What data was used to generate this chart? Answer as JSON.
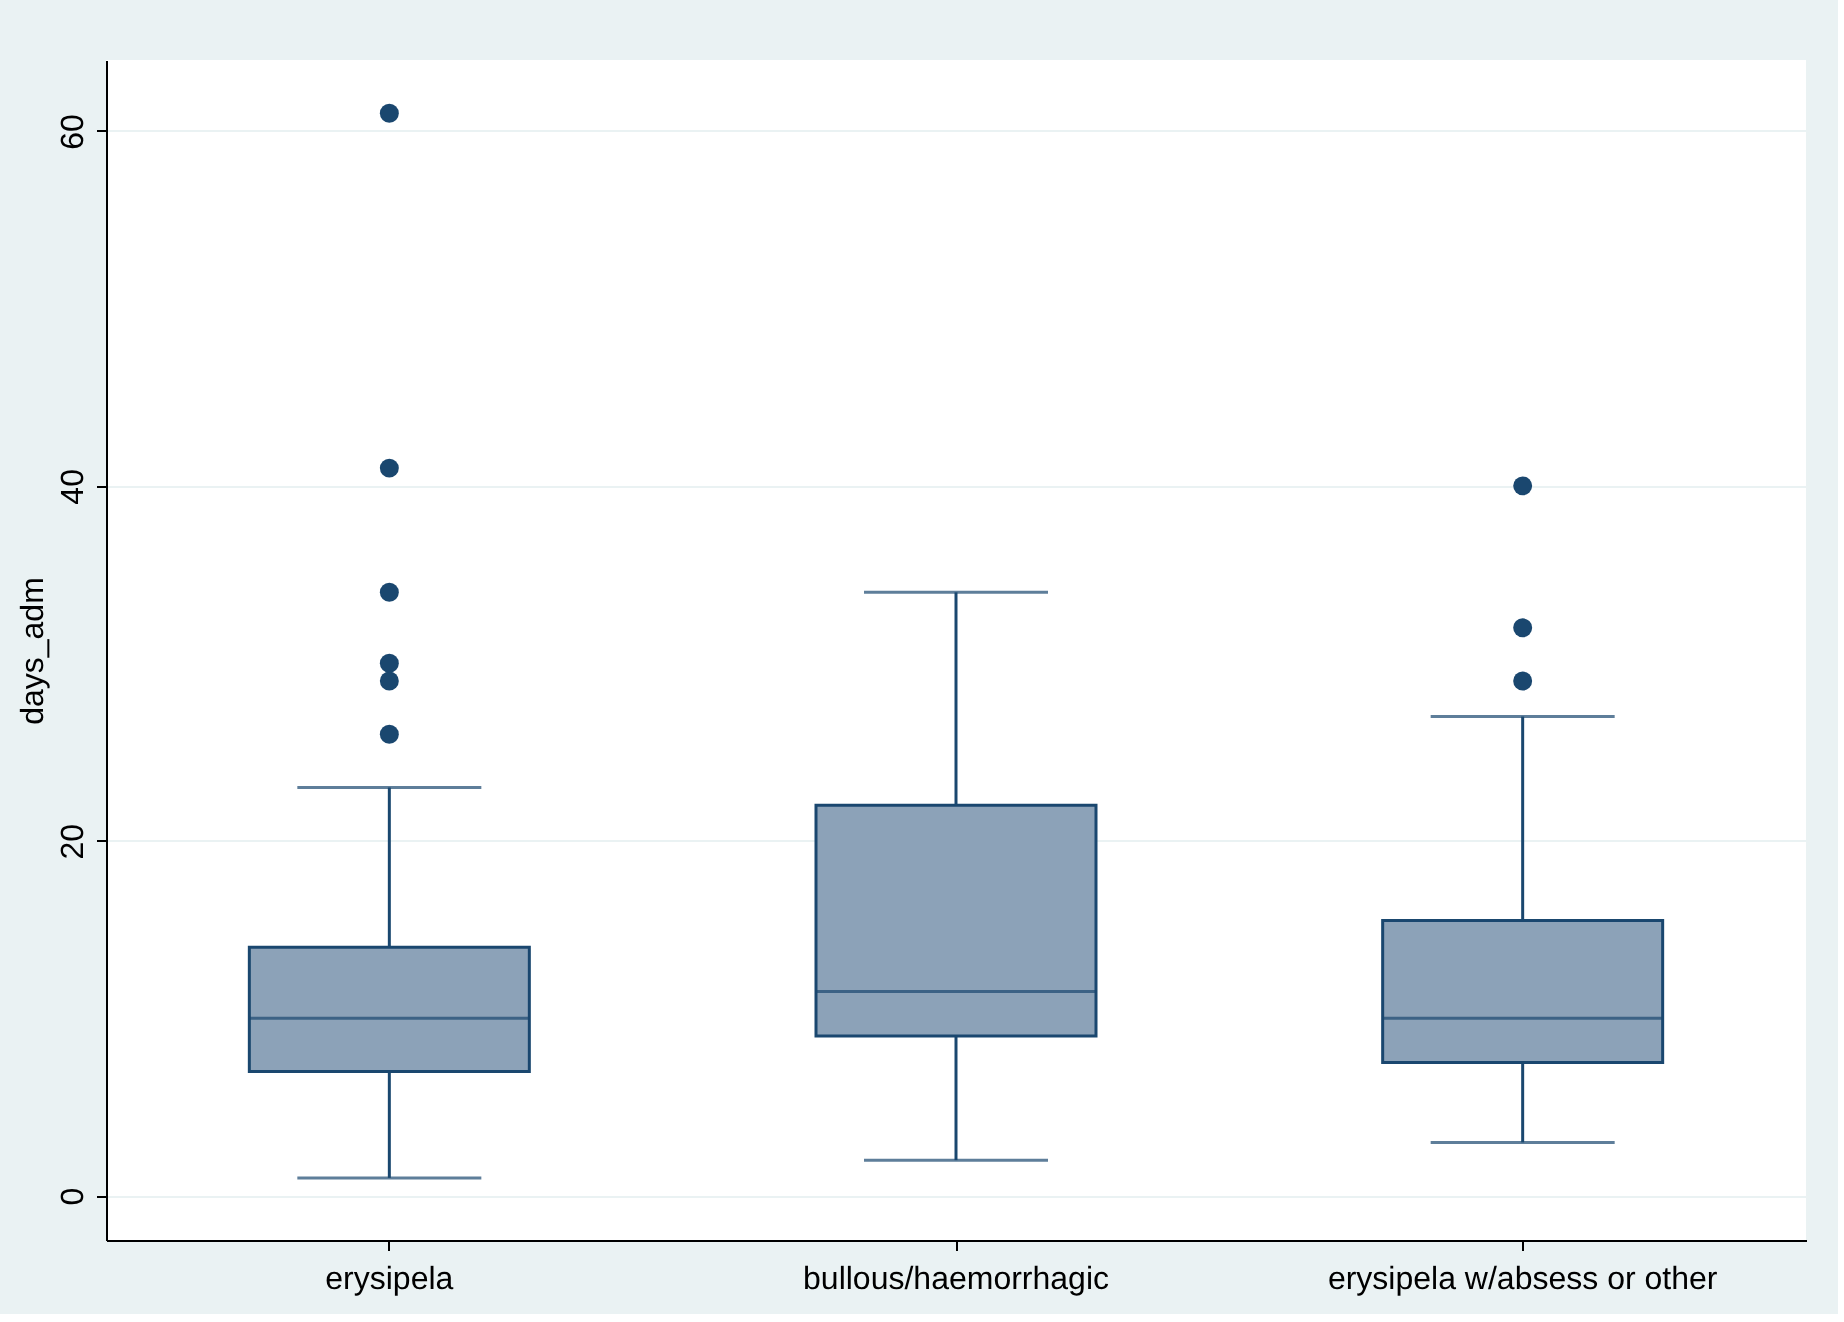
{
  "chart_data": {
    "type": "box",
    "ylabel": "days_adm",
    "categories": [
      "erysipela",
      "bullous/haemorrhagic",
      "erysipela w/absess or other"
    ],
    "boxes": [
      {
        "low": 1,
        "q1": 7,
        "median": 10,
        "q3": 14,
        "high": 23,
        "outliers": [
          26,
          29,
          30,
          34,
          41,
          61
        ]
      },
      {
        "low": 2,
        "q1": 9,
        "median": 11.5,
        "q3": 22,
        "high": 34
      },
      {
        "low": 3,
        "q1": 7.5,
        "median": 10,
        "q3": 15.5,
        "high": 27,
        "outliers": [
          29,
          32,
          40
        ]
      }
    ],
    "color": "#8ca2b8",
    "ylim": [
      -2.5,
      64
    ],
    "yticks": [
      0,
      20,
      40,
      60
    ],
    "grid": "y"
  }
}
